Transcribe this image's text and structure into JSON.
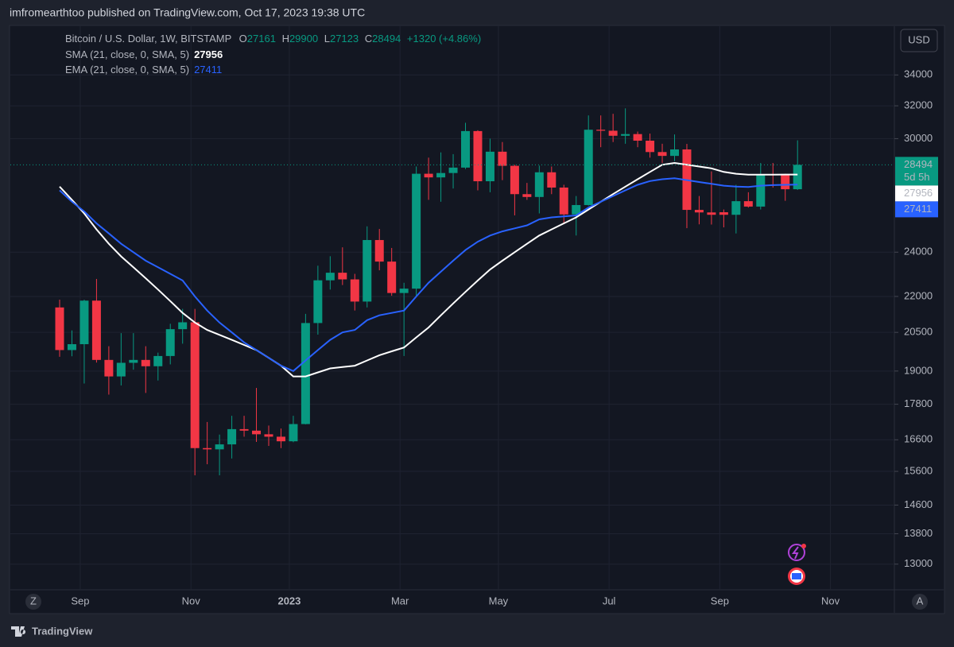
{
  "header": "imfromearthtoo published on TradingView.com, Oct 17, 2023 19:38 UTC",
  "footer": "TradingView",
  "buttons": {
    "currency": "USD",
    "left": "Z",
    "right": "A"
  },
  "chart_data": {
    "type": "candlestick",
    "symbol": "Bitcoin / U.S. Dollar, 1W, BITSTAMP",
    "ohlc_labels": [
      "O",
      "H",
      "L",
      "C"
    ],
    "change": "+1320 (+4.86%)",
    "countdown": "5d 5h",
    "log_scale": true,
    "grid": true,
    "up_color": "#089981",
    "down_color": "#f23645",
    "ylim": [
      12400,
      37300
    ],
    "yticks": [
      13000,
      13800,
      14600,
      15600,
      16600,
      17800,
      19000,
      20500,
      22000,
      24000,
      30000,
      32000,
      34000
    ],
    "categories": [
      null,
      null,
      "Sep",
      null,
      null,
      null,
      null,
      null,
      null,
      null,
      null,
      "Nov",
      null,
      null,
      null,
      null,
      null,
      null,
      null,
      "2023",
      null,
      null,
      null,
      null,
      null,
      null,
      null,
      null,
      "Mar",
      null,
      null,
      null,
      null,
      null,
      null,
      null,
      "May",
      null,
      null,
      null,
      null,
      null,
      null,
      null,
      null,
      "Jul",
      null,
      null,
      null,
      null,
      null,
      null,
      null,
      null,
      "Sep",
      null,
      null,
      null,
      null,
      null,
      null,
      null,
      null,
      "Nov"
    ],
    "open": [
      21530,
      19800,
      20030,
      21820,
      19420,
      18800,
      19310,
      19420,
      19180,
      19570,
      20630,
      20910,
      16330,
      16290,
      16450,
      16950,
      16900,
      16780,
      16700,
      16550,
      17120,
      20880,
      22710,
      23050,
      22750,
      21780,
      24580,
      23560,
      22150,
      22340,
      28000,
      27800,
      28040,
      28340,
      30450,
      27590,
      29240,
      28440,
      26900,
      26750,
      28080,
      27250,
      25850,
      26330,
      30530,
      30470,
      30170,
      30270,
      29880,
      29220,
      29000,
      29370,
      26080,
      25950,
      25960,
      25830,
      26530,
      26250,
      27970,
      27930,
      27161,
      null,
      null,
      null
    ],
    "high": [
      21860,
      20580,
      21860,
      22770,
      19950,
      20470,
      20470,
      19950,
      19700,
      20850,
      21470,
      21470,
      17190,
      16770,
      17400,
      17400,
      18380,
      17070,
      16970,
      17400,
      21260,
      23370,
      23810,
      24230,
      23000,
      25250,
      25120,
      24200,
      22600,
      28400,
      28900,
      29200,
      29100,
      30950,
      30500,
      30000,
      29800,
      28500,
      27500,
      28450,
      28400,
      27400,
      26800,
      31400,
      31400,
      31500,
      31840,
      30420,
      30300,
      29700,
      30250,
      29690,
      26800,
      28130,
      26100,
      27400,
      27000,
      28600,
      28600,
      28000,
      29900,
      null,
      null,
      null
    ],
    "low": [
      19540,
      19560,
      18540,
      19320,
      18140,
      18470,
      19050,
      18200,
      18650,
      19250,
      20050,
      15480,
      15820,
      15480,
      16000,
      16700,
      16530,
      16400,
      16330,
      16520,
      17110,
      20410,
      22300,
      22500,
      21400,
      21530,
      23160,
      22030,
      19570,
      22000,
      26600,
      26500,
      27200,
      28260,
      27100,
      27000,
      27650,
      25800,
      26600,
      25900,
      26900,
      25400,
      24800,
      26300,
      29500,
      29800,
      29700,
      29500,
      28900,
      28600,
      28700,
      25160,
      25350,
      25340,
      25200,
      24900,
      26200,
      26100,
      27250,
      26550,
      27123,
      null,
      null,
      null
    ],
    "close": [
      19800,
      20030,
      21820,
      19420,
      18800,
      19310,
      19420,
      19180,
      19570,
      20630,
      20910,
      16330,
      16290,
      16450,
      16950,
      16900,
      16780,
      16700,
      16550,
      17120,
      20880,
      22710,
      23050,
      22750,
      21780,
      24580,
      23560,
      22150,
      22340,
      28000,
      27800,
      28040,
      28340,
      30450,
      27590,
      29240,
      28440,
      26900,
      26750,
      28080,
      27250,
      25850,
      26330,
      30530,
      30470,
      30170,
      30270,
      29880,
      29220,
      29000,
      29370,
      26080,
      25950,
      25830,
      25830,
      26530,
      26250,
      27970,
      27930,
      27160,
      28494,
      null,
      null,
      null
    ],
    "series": [
      {
        "name": "SMA (21, close, 0, SMA, 5)",
        "color": "#ffffff",
        "values": [
          27300,
          26600,
          25900,
          25100,
          24400,
          23800,
          23300,
          22800,
          22300,
          21800,
          21300,
          20900,
          20600,
          20400,
          20200,
          20000,
          19800,
          19500,
          19200,
          18800,
          18800,
          18950,
          19100,
          19150,
          19200,
          19400,
          19600,
          19750,
          19900,
          20300,
          20700,
          21200,
          21700,
          22200,
          22700,
          23200,
          23600,
          24000,
          24400,
          24800,
          25100,
          25400,
          25700,
          26100,
          26500,
          26900,
          27300,
          27700,
          28100,
          28500,
          28600,
          28500,
          28400,
          28300,
          28100,
          28000,
          27950,
          27950,
          27950,
          27956,
          27956,
          null,
          null,
          null
        ]
      },
      {
        "name": "EMA (21, close, 0, SMA, 5)",
        "color": "#2962ff",
        "values": [
          27100,
          26500,
          26000,
          25400,
          24900,
          24400,
          24000,
          23600,
          23300,
          23000,
          22700,
          22000,
          21400,
          20900,
          20500,
          20100,
          19800,
          19500,
          19200,
          19000,
          19400,
          19800,
          20200,
          20500,
          20600,
          21000,
          21200,
          21300,
          21400,
          22000,
          22600,
          23100,
          23600,
          24100,
          24500,
          24800,
          25000,
          25150,
          25300,
          25600,
          25700,
          25750,
          25800,
          26200,
          26500,
          26800,
          27100,
          27400,
          27600,
          27700,
          27750,
          27650,
          27550,
          27450,
          27350,
          27300,
          27280,
          27350,
          27380,
          27400,
          27411,
          null,
          null,
          null
        ]
      }
    ]
  }
}
